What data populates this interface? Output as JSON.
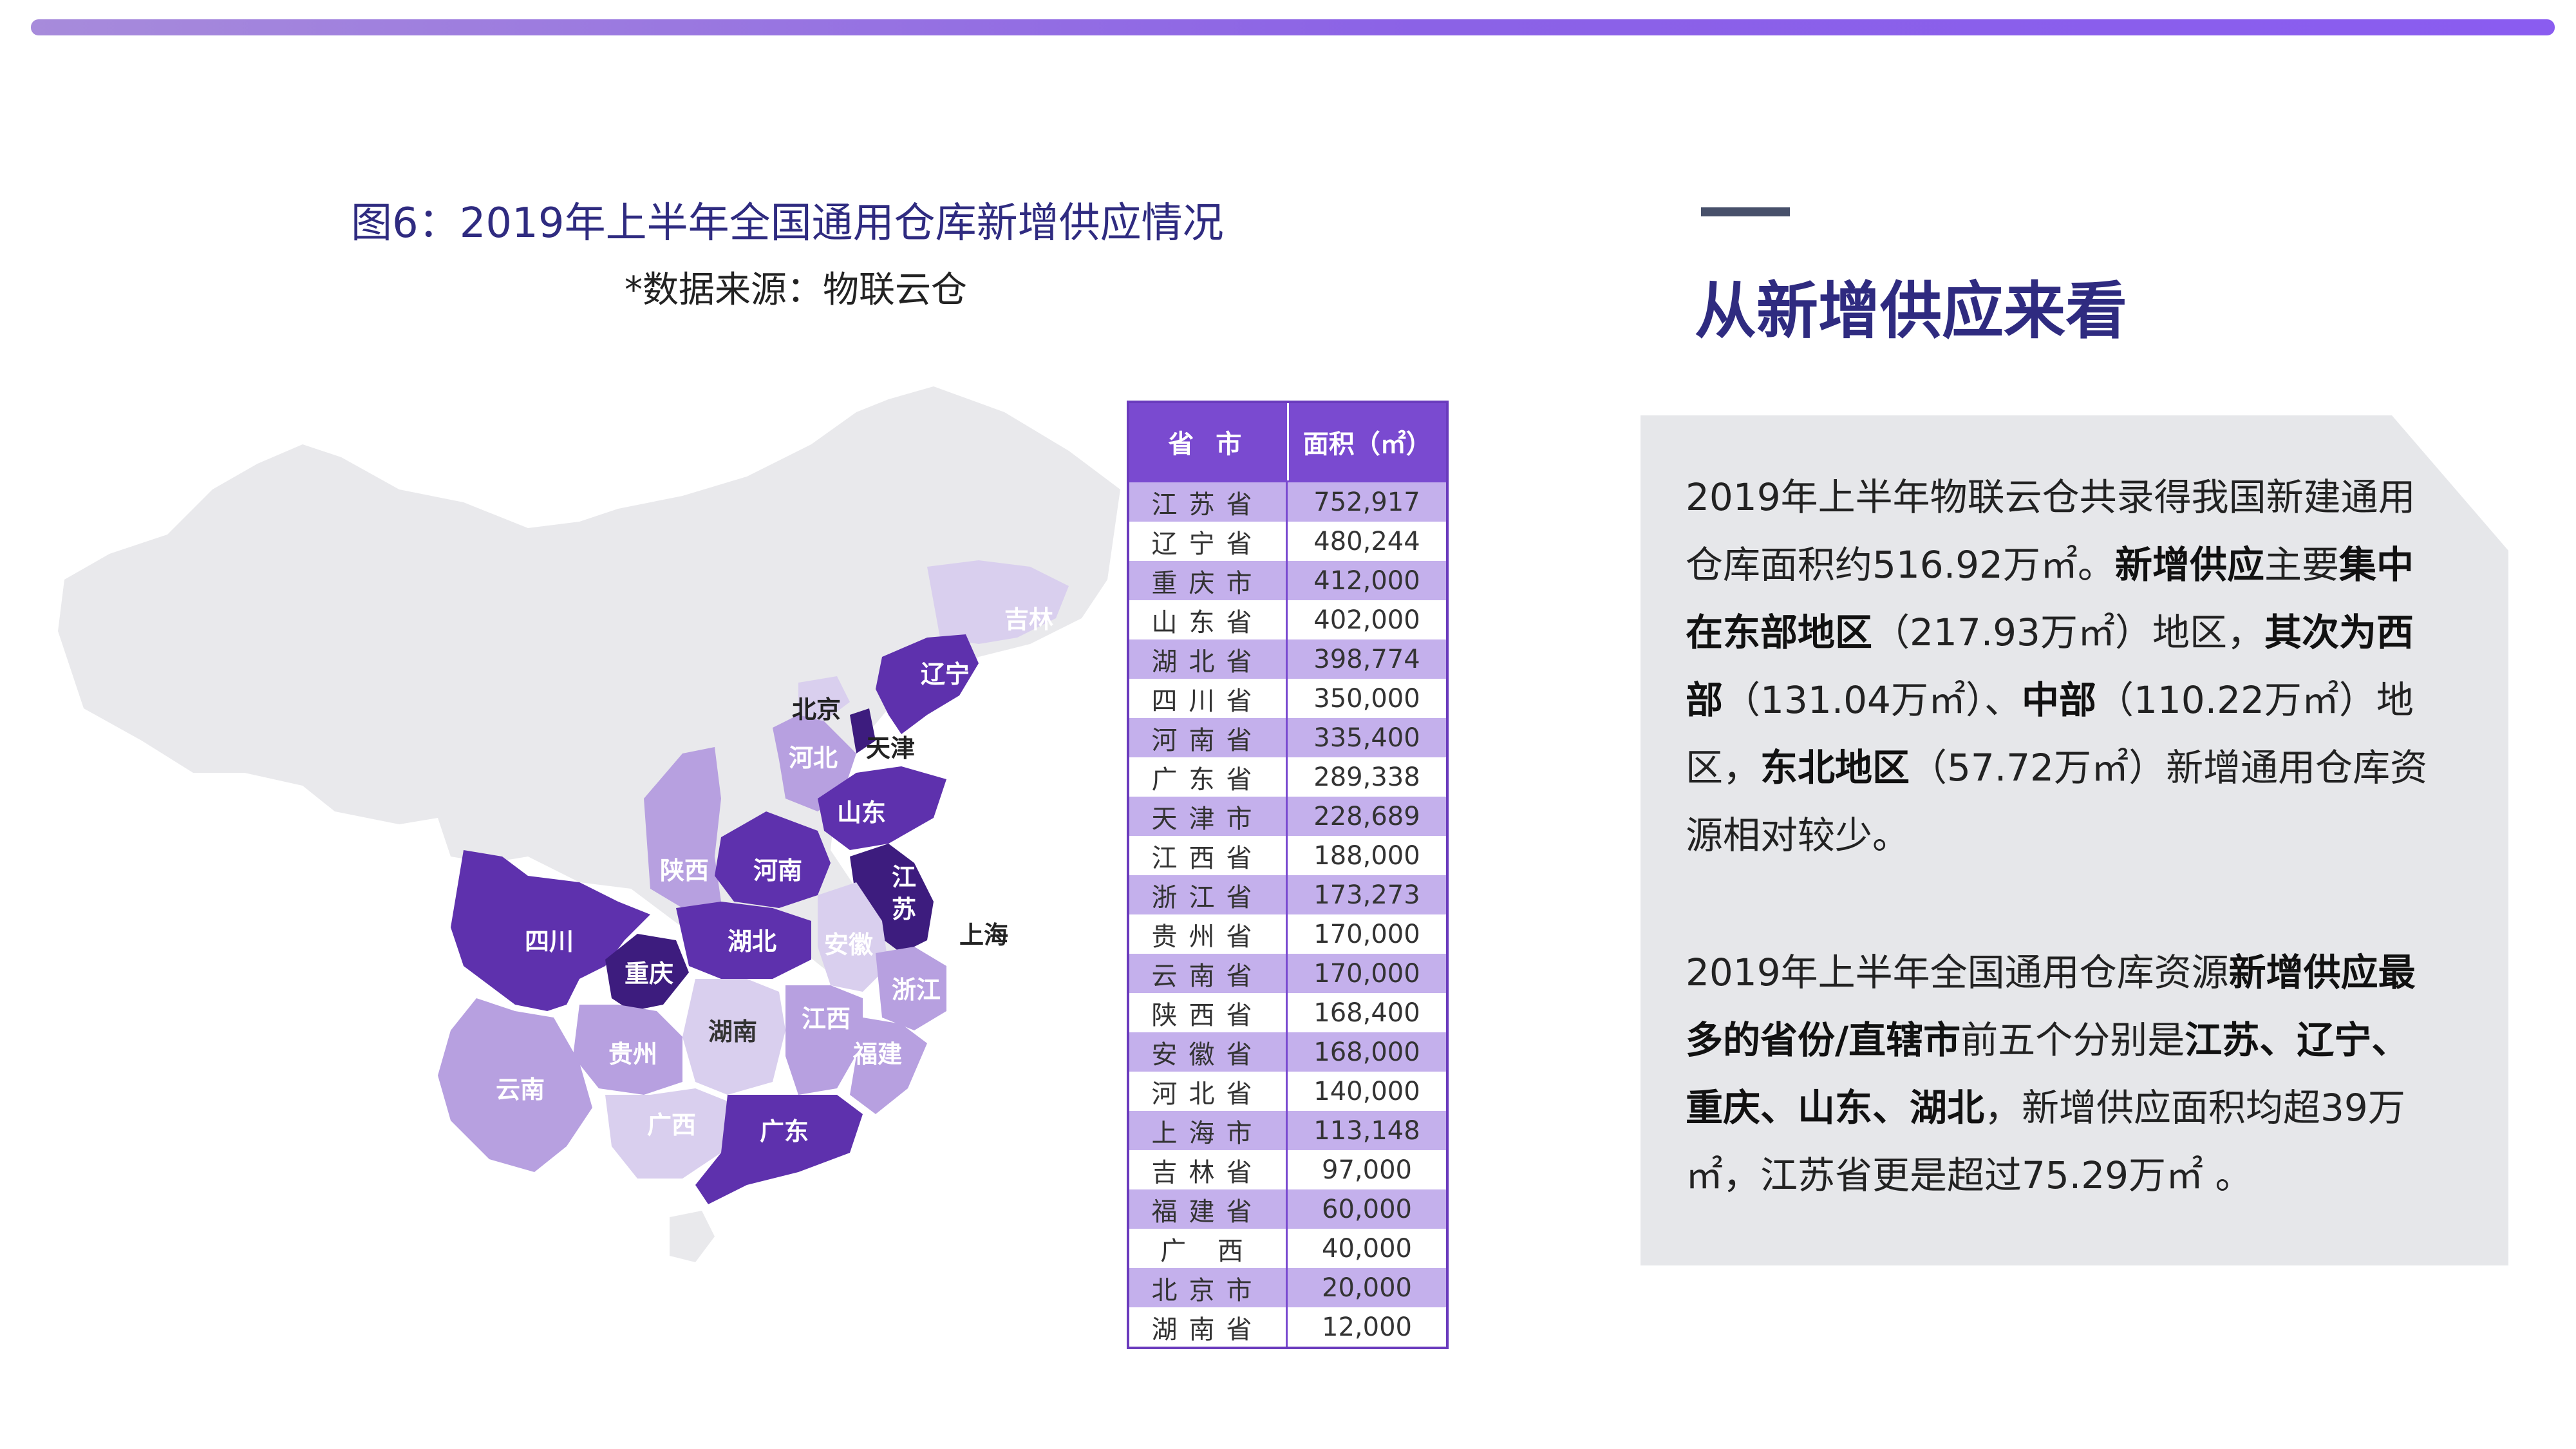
{
  "figure": {
    "title": "图6：2019年上半年全国通用仓库新增供应情况",
    "source": "*数据来源：物联云仓"
  },
  "map": {
    "labels": {
      "jilin": "吉林",
      "liaoning": "辽宁",
      "beijing": "北京",
      "tianjin": "天津",
      "hebei": "河北",
      "shandong": "山东",
      "jiangsu": "江\n苏",
      "shanghai": "上海",
      "shaanxi": "陕西",
      "henan": "河南",
      "sichuan": "四川",
      "hubei": "湖北",
      "anhui": "安徽",
      "zhejiang": "浙江",
      "chongqing": "重庆",
      "hunan": "湖南",
      "jiangxi": "江西",
      "guizhou": "贵州",
      "fujian": "福建",
      "yunnan": "云南",
      "guangxi": "广西",
      "guangdong": "广东"
    },
    "colors": {
      "none": "#e9e9ec",
      "light": "#d9cfee",
      "medium": "#b7a0e0",
      "dark": "#7b4bc6",
      "darker": "#5e31ad",
      "darkest": "#3d1c7e"
    }
  },
  "table": {
    "headers": [
      "省 市",
      "面积（㎡）"
    ],
    "rows": [
      {
        "name": "江苏省",
        "value": "752,917"
      },
      {
        "name": "辽宁省",
        "value": "480,244"
      },
      {
        "name": "重庆市",
        "value": "412,000"
      },
      {
        "name": "山东省",
        "value": "402,000"
      },
      {
        "name": "湖北省",
        "value": "398,774"
      },
      {
        "name": "四川省",
        "value": "350,000"
      },
      {
        "name": "河南省",
        "value": "335,400"
      },
      {
        "name": "广东省",
        "value": "289,338"
      },
      {
        "name": "天津市",
        "value": "228,689"
      },
      {
        "name": "江西省",
        "value": "188,000"
      },
      {
        "name": "浙江省",
        "value": "173,273"
      },
      {
        "name": "贵州省",
        "value": "170,000"
      },
      {
        "name": "云南省",
        "value": "170,000"
      },
      {
        "name": "陕西省",
        "value": "168,400"
      },
      {
        "name": "安徽省",
        "value": "168,000"
      },
      {
        "name": "河北省",
        "value": "140,000"
      },
      {
        "name": "上海市",
        "value": "113,148"
      },
      {
        "name": "吉林省",
        "value": "97,000"
      },
      {
        "name": "福建省",
        "value": "60,000"
      },
      {
        "name": "广 西",
        "value": "40,000"
      },
      {
        "name": "北京市",
        "value": "20,000"
      },
      {
        "name": "湖南省",
        "value": "12,000"
      }
    ]
  },
  "panel": {
    "heading": "从新增供应来看",
    "p1": [
      {
        "t": "2019年上半年物联云仓共录得我国新建通用仓库面积约516.92万㎡。",
        "b": false
      },
      {
        "t": "新增供应",
        "b": true
      },
      {
        "t": "主要",
        "b": false
      },
      {
        "t": "集中在东部地区",
        "b": true
      },
      {
        "t": "（217.93万㎡）地区，",
        "b": false
      },
      {
        "t": "其次为西部",
        "b": true
      },
      {
        "t": "（131.04万㎡）、",
        "b": false
      },
      {
        "t": "中部",
        "b": true
      },
      {
        "t": "（110.22万㎡）地区，",
        "b": false
      },
      {
        "t": "东北地区",
        "b": true
      },
      {
        "t": "（57.72万㎡）新增通用仓库资源相对较少。",
        "b": false
      }
    ],
    "p2": [
      {
        "t": "2019年上半年全国通用仓库资源",
        "b": false
      },
      {
        "t": "新增供应最多的省份/直辖市",
        "b": true
      },
      {
        "t": "前五个分别是",
        "b": false
      },
      {
        "t": "江苏、辽宁、重庆、山东、湖北",
        "b": true
      },
      {
        "t": "，新增供应面积均超39万㎡，江苏省更是超过75.29万㎡ 。",
        "b": false
      }
    ]
  }
}
